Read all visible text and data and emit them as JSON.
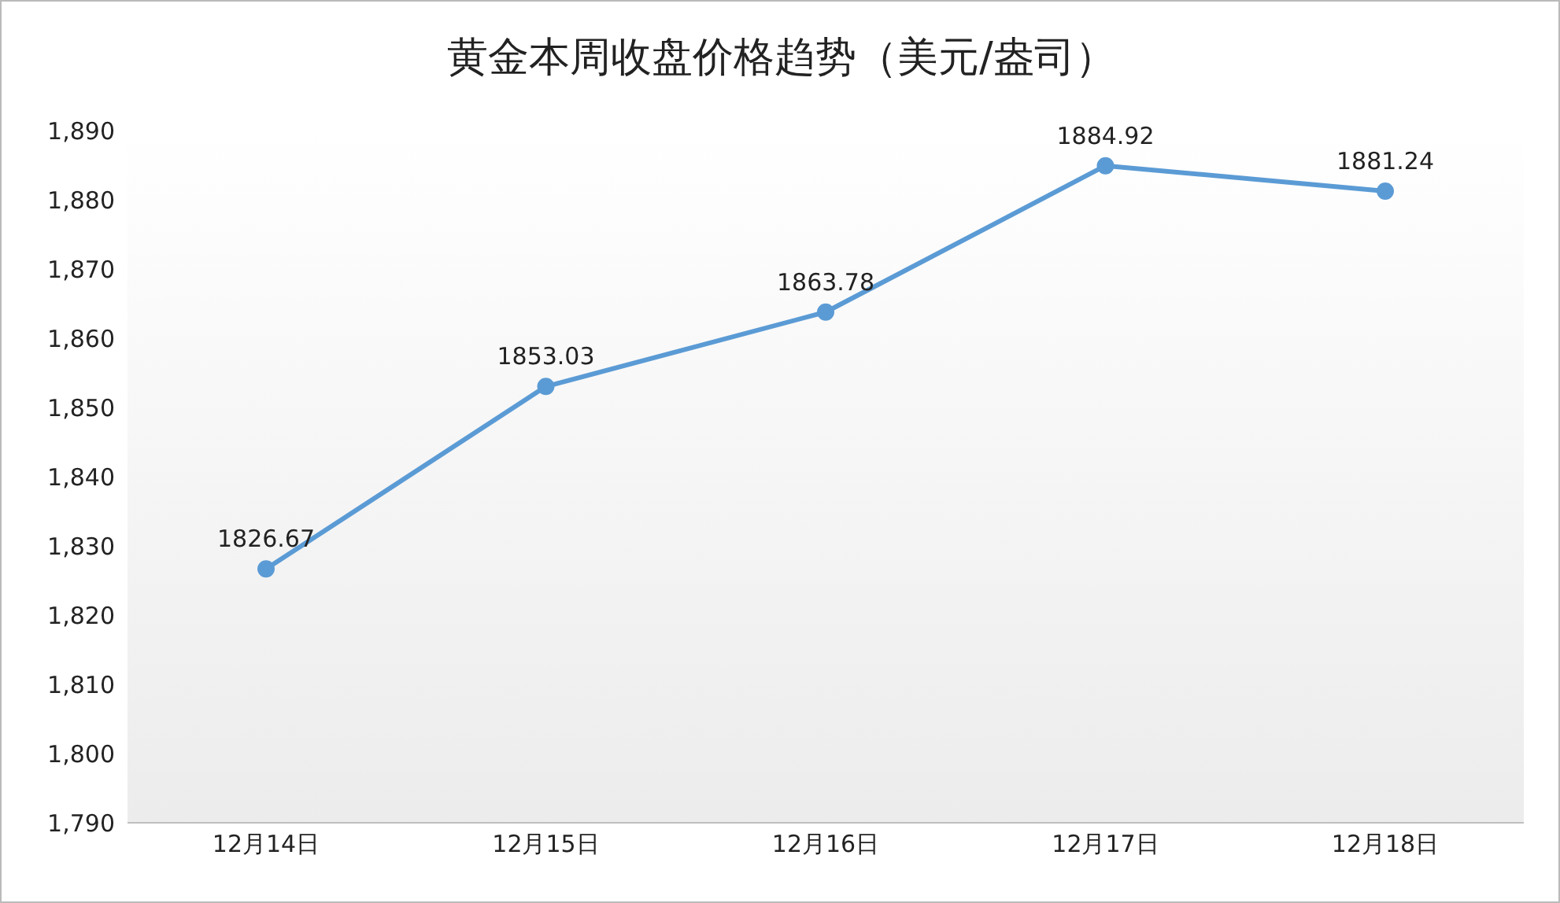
{
  "chart_data": {
    "type": "line",
    "title": "黄金本周收盘价格趋势（美元/盎司）",
    "categories": [
      "12月14日",
      "12月15日",
      "12月16日",
      "12月17日",
      "12月18日"
    ],
    "series": [
      {
        "color": "#5b9bd5",
        "values": [
          1826.67,
          1853.03,
          1863.78,
          1884.92,
          1881.24
        ]
      }
    ],
    "ylim": [
      1790,
      1890
    ],
    "yticks": [
      {
        "value": 1790,
        "label": "1,790"
      },
      {
        "value": 1800,
        "label": "1,800"
      },
      {
        "value": 1810,
        "label": "1,810"
      },
      {
        "value": 1820,
        "label": "1,820"
      },
      {
        "value": 1830,
        "label": "1,830"
      },
      {
        "value": 1840,
        "label": "1,840"
      },
      {
        "value": 1850,
        "label": "1,850"
      },
      {
        "value": 1860,
        "label": "1,860"
      },
      {
        "value": 1870,
        "label": "1,870"
      },
      {
        "value": 1880,
        "label": "1,880"
      },
      {
        "value": 1890,
        "label": "1,890"
      }
    ],
    "grid": false,
    "legend": false,
    "marker": "circle",
    "line_style": "solid",
    "data_labels": true
  }
}
